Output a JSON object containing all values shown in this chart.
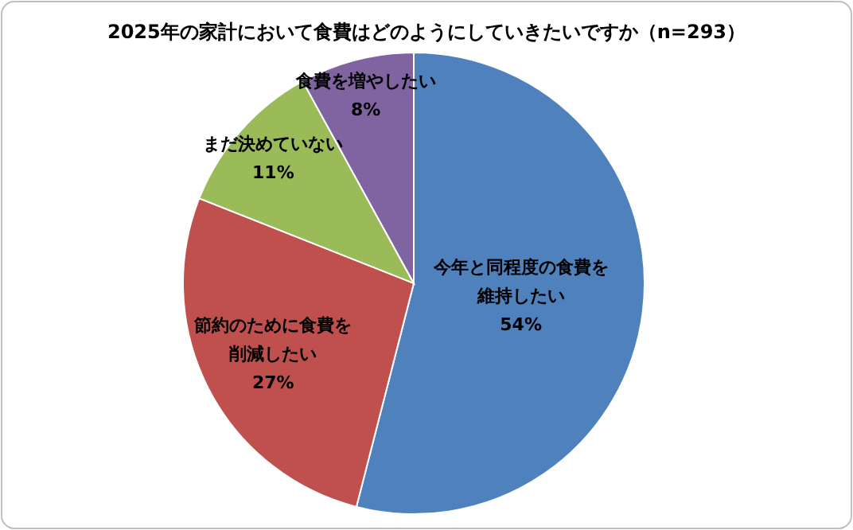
{
  "chart_data": {
    "type": "pie",
    "title": "2025年の家計において食費はどのようにしていきたいですか（n=293）",
    "categories": [
      "今年と同程度の食費を維持したい",
      "節約のために食費を削減したい",
      "まだ決めていない",
      "食費を増やしたい"
    ],
    "values": [
      54,
      27,
      11,
      8
    ],
    "value_labels": [
      "54%",
      "27%",
      "11%",
      "8%"
    ],
    "colors": [
      "#4f81bd",
      "#c0504d",
      "#9bbb59",
      "#8064a2"
    ]
  }
}
